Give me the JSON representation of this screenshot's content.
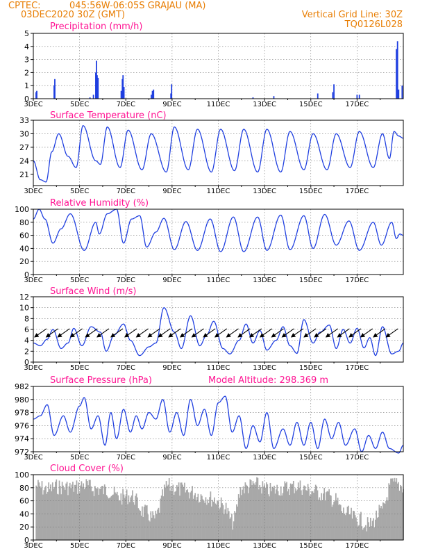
{
  "header": {
    "source": "CPTEC:",
    "location": "045:56W-06:05S   GRAJAU (MA)",
    "run": "03DEC2020 30Z (GMT)",
    "grid_line": "Vertical Grid Line: 30Z",
    "code": "TQ0126L028"
  },
  "x_ticks": [
    "3DEC",
    "5DEC",
    "7DEC",
    "9DEC",
    "11DEC",
    "13DEC",
    "15DEC",
    "17DEC"
  ],
  "colors": {
    "series": "#1f3fe0",
    "cloud": "#a8a8a8",
    "title": "#ff1493",
    "header": "#e87e04",
    "arrow": "#000000"
  },
  "chart_data": [
    {
      "type": "bar",
      "title": "Precipitation (mm/h)",
      "ylim": [
        0,
        5
      ],
      "yticks": [
        0,
        1,
        2,
        3,
        4,
        5
      ],
      "x_range_days": [
        3,
        19
      ],
      "grid": true,
      "values_by_day": [
        [
          3.12,
          0.5
        ],
        [
          3.15,
          0.6
        ],
        [
          3.9,
          1.0
        ],
        [
          3.93,
          1.5
        ],
        [
          5.45,
          0.1
        ],
        [
          5.6,
          0.3
        ],
        [
          5.7,
          2.0
        ],
        [
          5.73,
          2.9
        ],
        [
          5.76,
          1.8
        ],
        [
          5.8,
          1.6
        ],
        [
          6.8,
          0.6
        ],
        [
          6.85,
          1.5
        ],
        [
          6.88,
          1.8
        ],
        [
          6.92,
          0.9
        ],
        [
          8.1,
          0.3
        ],
        [
          8.15,
          0.6
        ],
        [
          8.2,
          0.7
        ],
        [
          8.95,
          0.4
        ],
        [
          8.98,
          1.1
        ],
        [
          12.5,
          0.1
        ],
        [
          13.4,
          0.2
        ],
        [
          15.3,
          0.4
        ],
        [
          15.95,
          0.5
        ],
        [
          16.0,
          1.1
        ],
        [
          17.0,
          0.3
        ],
        [
          17.1,
          0.3
        ],
        [
          18.7,
          3.8
        ],
        [
          18.75,
          4.4
        ],
        [
          18.8,
          0.7
        ],
        [
          18.95,
          1.0
        ]
      ]
    },
    {
      "type": "line",
      "title": "Surface Temperature (nC)",
      "ylim": [
        18.5,
        33
      ],
      "yticks": [
        21,
        24,
        27,
        30,
        33
      ],
      "x_range_days": [
        3,
        19
      ],
      "grid": true,
      "keypoints": [
        [
          3.0,
          24.0
        ],
        [
          3.3,
          19.8
        ],
        [
          3.55,
          19.3
        ],
        [
          3.8,
          26.0
        ],
        [
          4.1,
          30.0
        ],
        [
          4.5,
          25.0
        ],
        [
          4.85,
          22.5
        ],
        [
          5.15,
          31.8
        ],
        [
          5.7,
          24.0
        ],
        [
          5.9,
          23.2
        ],
        [
          6.2,
          31.5
        ],
        [
          6.75,
          22.5
        ],
        [
          7.1,
          30.8
        ],
        [
          7.7,
          22.0
        ],
        [
          8.1,
          30.0
        ],
        [
          8.75,
          21.5
        ],
        [
          9.1,
          31.5
        ],
        [
          9.7,
          22.0
        ],
        [
          10.1,
          31.0
        ],
        [
          10.7,
          21.5
        ],
        [
          11.1,
          31.0
        ],
        [
          11.7,
          21.8
        ],
        [
          12.1,
          31.0
        ],
        [
          12.7,
          21.5
        ],
        [
          13.1,
          31.0
        ],
        [
          13.7,
          21.5
        ],
        [
          14.1,
          30.5
        ],
        [
          14.7,
          22.0
        ],
        [
          15.1,
          30.0
        ],
        [
          15.7,
          22.0
        ],
        [
          16.1,
          30.0
        ],
        [
          16.7,
          22.5
        ],
        [
          17.1,
          30.5
        ],
        [
          17.7,
          22.5
        ],
        [
          18.1,
          30.0
        ],
        [
          18.4,
          24.5
        ],
        [
          18.6,
          30.5
        ],
        [
          18.8,
          29.5
        ],
        [
          19.0,
          29.0
        ]
      ]
    },
    {
      "type": "line",
      "title": "Relative Humidity (%)",
      "ylim": [
        0,
        100
      ],
      "yticks": [
        0,
        20,
        40,
        60,
        80,
        100
      ],
      "x_range_days": [
        3,
        19
      ],
      "grid": true,
      "keypoints": [
        [
          3.0,
          85.0
        ],
        [
          3.25,
          100.0
        ],
        [
          3.5,
          85.0
        ],
        [
          3.85,
          48.0
        ],
        [
          4.2,
          70.0
        ],
        [
          4.6,
          93.0
        ],
        [
          5.2,
          37.0
        ],
        [
          5.7,
          80.0
        ],
        [
          5.85,
          62.0
        ],
        [
          6.2,
          93.0
        ],
        [
          6.6,
          100.0
        ],
        [
          6.9,
          48.0
        ],
        [
          7.25,
          85.0
        ],
        [
          7.6,
          90.0
        ],
        [
          7.9,
          42.0
        ],
        [
          8.3,
          65.0
        ],
        [
          8.65,
          86.0
        ],
        [
          9.1,
          38.0
        ],
        [
          9.6,
          81.0
        ],
        [
          10.1,
          37.0
        ],
        [
          10.65,
          85.0
        ],
        [
          11.1,
          35.0
        ],
        [
          11.65,
          88.0
        ],
        [
          12.1,
          35.0
        ],
        [
          12.7,
          88.0
        ],
        [
          13.1,
          37.0
        ],
        [
          13.7,
          91.0
        ],
        [
          14.1,
          38.0
        ],
        [
          14.7,
          90.0
        ],
        [
          15.1,
          40.0
        ],
        [
          15.6,
          92.0
        ],
        [
          16.1,
          45.0
        ],
        [
          16.65,
          82.0
        ],
        [
          17.1,
          37.0
        ],
        [
          17.7,
          80.0
        ],
        [
          18.05,
          45.0
        ],
        [
          18.5,
          80.0
        ],
        [
          18.7,
          55.0
        ],
        [
          18.85,
          62.0
        ],
        [
          19.0,
          60.0
        ]
      ]
    },
    {
      "type": "line",
      "title": "Surface Wind (m/s)",
      "ylim": [
        0,
        12
      ],
      "yticks": [
        0,
        2,
        4,
        6,
        8,
        10,
        12
      ],
      "x_range_days": [
        3,
        19
      ],
      "grid": true,
      "keypoints": [
        [
          3.0,
          3.5
        ],
        [
          3.3,
          3.0
        ],
        [
          3.6,
          4.2
        ],
        [
          3.85,
          6.0
        ],
        [
          4.2,
          2.5
        ],
        [
          4.5,
          3.5
        ],
        [
          4.75,
          6.2
        ],
        [
          5.1,
          3.0
        ],
        [
          5.5,
          6.5
        ],
        [
          5.9,
          5.5
        ],
        [
          6.15,
          2.0
        ],
        [
          6.5,
          5.0
        ],
        [
          6.9,
          7.0
        ],
        [
          7.2,
          4.0
        ],
        [
          7.6,
          1.2
        ],
        [
          8.0,
          2.8
        ],
        [
          8.3,
          3.5
        ],
        [
          8.65,
          10.0
        ],
        [
          9.1,
          5.5
        ],
        [
          9.4,
          2.5
        ],
        [
          9.8,
          8.5
        ],
        [
          10.2,
          3.0
        ],
        [
          10.5,
          5.0
        ],
        [
          10.8,
          7.5
        ],
        [
          11.2,
          2.5
        ],
        [
          11.5,
          1.5
        ],
        [
          11.9,
          4.0
        ],
        [
          12.2,
          7.0
        ],
        [
          12.5,
          3.5
        ],
        [
          12.8,
          5.8
        ],
        [
          13.1,
          2.2
        ],
        [
          13.5,
          4.0
        ],
        [
          13.8,
          6.5
        ],
        [
          14.1,
          3.0
        ],
        [
          14.4,
          1.6
        ],
        [
          14.7,
          7.8
        ],
        [
          15.1,
          3.5
        ],
        [
          15.4,
          5.5
        ],
        [
          15.8,
          6.8
        ],
        [
          16.1,
          2.5
        ],
        [
          16.4,
          6.0
        ],
        [
          16.7,
          3.5
        ],
        [
          17.0,
          6.2
        ],
        [
          17.3,
          2.6
        ],
        [
          17.55,
          4.5
        ],
        [
          17.8,
          1.2
        ],
        [
          18.1,
          6.5
        ],
        [
          18.5,
          1.5
        ],
        [
          18.8,
          2.0
        ],
        [
          19.0,
          3.5
        ]
      ]
    },
    {
      "type": "line",
      "title": "Surface Pressure (hPa)",
      "annotation": "Model Altitude: 298.369 m",
      "ylim": [
        972,
        982
      ],
      "yticks": [
        972,
        974,
        976,
        978,
        980,
        982
      ],
      "x_range_days": [
        3,
        19
      ],
      "grid": true,
      "keypoints": [
        [
          3.0,
          977.0
        ],
        [
          3.3,
          977.5
        ],
        [
          3.6,
          979.2
        ],
        [
          3.9,
          974.5
        ],
        [
          4.3,
          977.5
        ],
        [
          4.6,
          975.0
        ],
        [
          5.0,
          979.0
        ],
        [
          5.2,
          980.3
        ],
        [
          5.5,
          975.5
        ],
        [
          5.8,
          977.5
        ],
        [
          6.1,
          973.0
        ],
        [
          6.35,
          978.0
        ],
        [
          6.6,
          974.0
        ],
        [
          6.9,
          978.5
        ],
        [
          7.2,
          975.0
        ],
        [
          7.45,
          977.5
        ],
        [
          7.7,
          975.5
        ],
        [
          8.0,
          978.0
        ],
        [
          8.3,
          977.0
        ],
        [
          8.6,
          980.0
        ],
        [
          8.9,
          975.0
        ],
        [
          9.2,
          978.0
        ],
        [
          9.5,
          974.5
        ],
        [
          9.8,
          980.0
        ],
        [
          10.1,
          976.0
        ],
        [
          10.4,
          978.5
        ],
        [
          10.7,
          974.5
        ],
        [
          11.0,
          979.5
        ],
        [
          11.3,
          980.5
        ],
        [
          11.6,
          975.0
        ],
        [
          11.9,
          977.5
        ],
        [
          12.2,
          972.5
        ],
        [
          12.5,
          976.0
        ],
        [
          12.8,
          973.5
        ],
        [
          13.1,
          978.0
        ],
        [
          13.4,
          972.5
        ],
        [
          13.8,
          975.5
        ],
        [
          14.1,
          973.0
        ],
        [
          14.4,
          976.5
        ],
        [
          14.7,
          973.0
        ],
        [
          15.0,
          976.5
        ],
        [
          15.3,
          972.5
        ],
        [
          15.6,
          977.0
        ],
        [
          15.9,
          974.0
        ],
        [
          16.2,
          976.5
        ],
        [
          16.5,
          973.0
        ],
        [
          16.9,
          975.5
        ],
        [
          17.2,
          972.0
        ],
        [
          17.5,
          974.5
        ],
        [
          17.8,
          972.5
        ],
        [
          18.1,
          975.0
        ],
        [
          18.4,
          972.5
        ],
        [
          18.8,
          971.8
        ],
        [
          19.0,
          973.0
        ]
      ]
    },
    {
      "type": "bar",
      "title": "Cloud Cover (%)",
      "ylim": [
        0,
        100
      ],
      "yticks": [
        0,
        20,
        40,
        60,
        80,
        100
      ],
      "x_range_days": [
        3,
        19
      ],
      "grid": true,
      "segments": [
        [
          3.0,
          96.0
        ],
        [
          3.6,
          90.0
        ],
        [
          4.0,
          94.0
        ],
        [
          4.8,
          93.0
        ],
        [
          5.2,
          97.0
        ],
        [
          5.6,
          91.0
        ],
        [
          6.2,
          88.0
        ],
        [
          6.7,
          78.0
        ],
        [
          7.2,
          80.0
        ],
        [
          7.8,
          55.0
        ],
        [
          8.2,
          45.0
        ],
        [
          8.8,
          95.0
        ],
        [
          9.3,
          90.0
        ],
        [
          9.8,
          86.0
        ],
        [
          10.3,
          80.0
        ],
        [
          10.8,
          75.0
        ],
        [
          11.2,
          65.0
        ],
        [
          11.6,
          40.0
        ],
        [
          12.0,
          92.0
        ],
        [
          12.6,
          97.0
        ],
        [
          13.2,
          88.0
        ],
        [
          13.8,
          92.0
        ],
        [
          14.4,
          95.0
        ],
        [
          15.0,
          88.0
        ],
        [
          15.6,
          82.0
        ],
        [
          16.0,
          74.0
        ],
        [
          16.4,
          55.0
        ],
        [
          17.0,
          45.0
        ],
        [
          17.5,
          35.0
        ],
        [
          18.0,
          55.0
        ],
        [
          18.5,
          98.0
        ],
        [
          19.0,
          95.0
        ]
      ],
      "notes_on_visual": "dense gray bars with hourly variation"
    }
  ],
  "wind_arrows": {
    "y_level": 5.5,
    "days": [
      3.3,
      3.8,
      4.3,
      4.85,
      5.5,
      6.0,
      6.6,
      7.2,
      7.7,
      8.2,
      8.65,
      9.1,
      9.6,
      10.1,
      10.6,
      11.1,
      11.6,
      12.1,
      12.6,
      13.05,
      13.55,
      14.0,
      14.4,
      14.95,
      15.4,
      15.9,
      16.4,
      16.9,
      17.4,
      17.95,
      18.5
    ],
    "direction": "toward lower-left"
  }
}
